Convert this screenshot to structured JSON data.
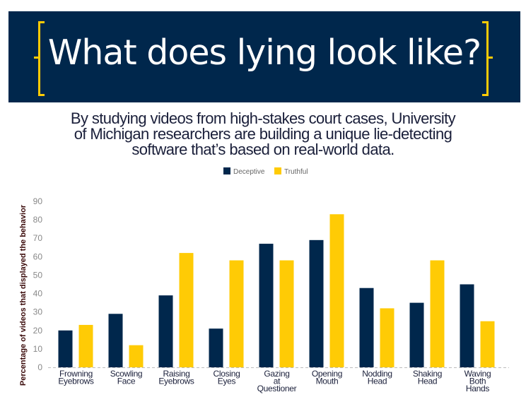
{
  "header": {
    "title": "What does lying look like?"
  },
  "subtitle": [
    "By studying videos from high-stakes court cases, University",
    "of Michigan researchers are building a unique lie-detecting",
    "software that’s based on real-world data."
  ],
  "colors": {
    "deceptive": "#00274C",
    "truthful": "#FFCB05",
    "header_bg": "#00274C"
  },
  "chart_data": {
    "type": "bar",
    "title": "",
    "xlabel": "",
    "ylabel": "Percentage of videos that displayed the behavior",
    "ylim": [
      0,
      90
    ],
    "yticks": [
      0,
      10,
      20,
      30,
      40,
      50,
      60,
      70,
      80,
      90
    ],
    "grid": false,
    "legend_position": "top-center",
    "categories": [
      [
        "Frowning",
        "Eyebrows"
      ],
      [
        "Scowling",
        "Face"
      ],
      [
        "Raising",
        "Eyebrows"
      ],
      [
        "Closing",
        "Eyes"
      ],
      [
        "Gazing",
        "at",
        "Questioner"
      ],
      [
        "Opening",
        "Mouth"
      ],
      [
        "Nodding",
        "Head"
      ],
      [
        "Shaking",
        "Head"
      ],
      [
        "Waving",
        "Both",
        "Hands"
      ]
    ],
    "series": [
      {
        "name": "Deceptive",
        "color": "#00274C",
        "values": [
          20,
          29,
          39,
          21,
          67,
          69,
          43,
          35,
          45
        ]
      },
      {
        "name": "Truthful",
        "color": "#FFCB05",
        "values": [
          23,
          12,
          62,
          58,
          58,
          83,
          32,
          58,
          25
        ]
      }
    ]
  }
}
